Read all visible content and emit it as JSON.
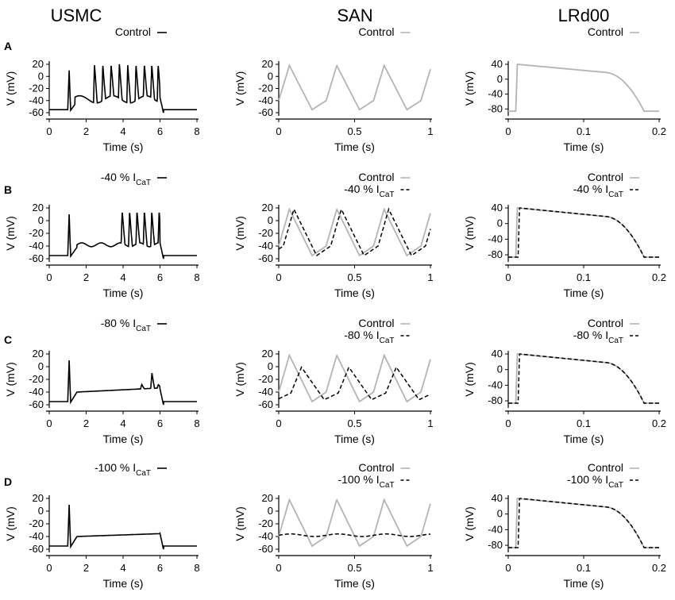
{
  "columns": [
    {
      "title": "USMC"
    },
    {
      "title": "SAN"
    },
    {
      "title": "LRd00"
    }
  ],
  "rows": [
    {
      "label": "A"
    },
    {
      "label": "B"
    },
    {
      "label": "C"
    },
    {
      "label": "D"
    }
  ],
  "colors": {
    "control": "#b4b4b4",
    "block": "#000000"
  },
  "chart_data": [
    {
      "id": "A-USMC",
      "type": "line",
      "xlabel": "Time (s)",
      "ylabel": "V (mV)",
      "xlim": [
        0,
        8
      ],
      "ylim": [
        -60,
        20
      ],
      "xticks": [
        "0",
        "2",
        "4",
        "6",
        "8"
      ],
      "yticks": [
        "20",
        "0",
        "-20",
        "-40",
        "-60"
      ],
      "trace": "usmc",
      "block": null,
      "legend": [
        {
          "name": "Control",
          "style": "solid-black"
        }
      ]
    },
    {
      "id": "A-SAN",
      "type": "line",
      "xlabel": "Time (s)",
      "ylabel": "V (mV)",
      "xlim": [
        0,
        1
      ],
      "ylim": [
        -60,
        20
      ],
      "xticks": [
        "0",
        "0.5",
        "1"
      ],
      "yticks": [
        "20",
        "0",
        "-20",
        "-40",
        "-60"
      ],
      "trace": "san",
      "block": null,
      "legend": [
        {
          "name": "Control",
          "style": "solid-gray"
        }
      ]
    },
    {
      "id": "A-LRd00",
      "type": "line",
      "xlabel": "Time (s)",
      "ylabel": "V (mV)",
      "xlim": [
        0,
        0.2
      ],
      "ylim": [
        -90,
        40
      ],
      "xticks": [
        "0",
        "0.1",
        "0.2"
      ],
      "yticks": [
        "40",
        "0",
        "-40",
        "-80"
      ],
      "trace": "lrd",
      "block": null,
      "legend": [
        {
          "name": "Control",
          "style": "solid-gray"
        }
      ]
    },
    {
      "id": "B-USMC",
      "type": "line",
      "xlabel": "Time (s)",
      "ylabel": "V (mV)",
      "xlim": [
        0,
        8
      ],
      "ylim": [
        -60,
        20
      ],
      "xticks": [
        "0",
        "2",
        "4",
        "6",
        "8"
      ],
      "yticks": [
        "20",
        "0",
        "-20",
        "-40",
        "-60"
      ],
      "trace": "usmc",
      "block": 40,
      "legend": [
        {
          "name": "-40 % I",
          "sub": "CaT",
          "style": "solid-black"
        }
      ]
    },
    {
      "id": "B-SAN",
      "type": "line",
      "xlabel": "Time (s)",
      "ylabel": "V (mV)",
      "xlim": [
        0,
        1
      ],
      "ylim": [
        -60,
        20
      ],
      "xticks": [
        "0",
        "0.5",
        "1"
      ],
      "yticks": [
        "20",
        "0",
        "-20",
        "-40",
        "-60"
      ],
      "trace": "san",
      "block": 40,
      "legend": [
        {
          "name": "Control",
          "style": "solid-gray"
        },
        {
          "name": "-40 % I",
          "sub": "CaT",
          "style": "dashed-black"
        }
      ]
    },
    {
      "id": "B-LRd00",
      "type": "line",
      "xlabel": "Time (s)",
      "ylabel": "V (mV)",
      "xlim": [
        0,
        0.2
      ],
      "ylim": [
        -90,
        40
      ],
      "xticks": [
        "0",
        "0.1",
        "0.2"
      ],
      "yticks": [
        "40",
        "0",
        "-40",
        "-80"
      ],
      "trace": "lrd",
      "block": 40,
      "legend": [
        {
          "name": "Control",
          "style": "solid-gray"
        },
        {
          "name": "-40 % I",
          "sub": "CaT",
          "style": "dashed-black"
        }
      ]
    },
    {
      "id": "C-USMC",
      "type": "line",
      "xlabel": "Time (s)",
      "ylabel": "V (mV)",
      "xlim": [
        0,
        8
      ],
      "ylim": [
        -60,
        20
      ],
      "xticks": [
        "0",
        "2",
        "4",
        "6",
        "8"
      ],
      "yticks": [
        "20",
        "0",
        "-20",
        "-40",
        "-60"
      ],
      "trace": "usmc",
      "block": 80,
      "legend": [
        {
          "name": "-80 % I",
          "sub": "CaT",
          "style": "solid-black"
        }
      ]
    },
    {
      "id": "C-SAN",
      "type": "line",
      "xlabel": "Time (s)",
      "ylabel": "V (mV)",
      "xlim": [
        0,
        1
      ],
      "ylim": [
        -60,
        20
      ],
      "xticks": [
        "0",
        "0.5",
        "1"
      ],
      "yticks": [
        "20",
        "0",
        "-20",
        "-40",
        "-60"
      ],
      "trace": "san",
      "block": 80,
      "legend": [
        {
          "name": "Control",
          "style": "solid-gray"
        },
        {
          "name": "-80 % I",
          "sub": "CaT",
          "style": "dashed-black"
        }
      ]
    },
    {
      "id": "C-LRd00",
      "type": "line",
      "xlabel": "Time (s)",
      "ylabel": "V (mV)",
      "xlim": [
        0,
        0.2
      ],
      "ylim": [
        -90,
        40
      ],
      "xticks": [
        "0",
        "0.1",
        "0.2"
      ],
      "yticks": [
        "40",
        "0",
        "-40",
        "-80"
      ],
      "trace": "lrd",
      "block": 80,
      "legend": [
        {
          "name": "Control",
          "style": "solid-gray"
        },
        {
          "name": "-80 % I",
          "sub": "CaT",
          "style": "dashed-black"
        }
      ]
    },
    {
      "id": "D-USMC",
      "type": "line",
      "xlabel": "Time (s)",
      "ylabel": "V (mV)",
      "xlim": [
        0,
        8
      ],
      "ylim": [
        -60,
        20
      ],
      "xticks": [
        "0",
        "2",
        "4",
        "6",
        "8"
      ],
      "yticks": [
        "20",
        "0",
        "-20",
        "-40",
        "-60"
      ],
      "trace": "usmc",
      "block": 100,
      "legend": [
        {
          "name": "-100 % I",
          "sub": "CaT",
          "style": "solid-black"
        }
      ]
    },
    {
      "id": "D-SAN",
      "type": "line",
      "xlabel": "Time (s)",
      "ylabel": "V (mV)",
      "xlim": [
        0,
        1
      ],
      "ylim": [
        -60,
        20
      ],
      "xticks": [
        "0",
        "0.5",
        "1"
      ],
      "yticks": [
        "20",
        "0",
        "-20",
        "-40",
        "-60"
      ],
      "trace": "san",
      "block": 100,
      "legend": [
        {
          "name": "Control",
          "style": "solid-gray"
        },
        {
          "name": "-100 % I",
          "sub": "CaT",
          "style": "dashed-black"
        }
      ]
    },
    {
      "id": "D-LRd00",
      "type": "line",
      "xlabel": "Time (s)",
      "ylabel": "V (mV)",
      "xlim": [
        0,
        0.2
      ],
      "ylim": [
        -90,
        40
      ],
      "xticks": [
        "0",
        "0.1",
        "0.2"
      ],
      "yticks": [
        "40",
        "0",
        "-40",
        "-80"
      ],
      "trace": "lrd",
      "block": 100,
      "legend": [
        {
          "name": "Control",
          "style": "solid-gray"
        },
        {
          "name": "-100 % I",
          "sub": "CaT",
          "style": "dashed-black"
        }
      ]
    }
  ]
}
